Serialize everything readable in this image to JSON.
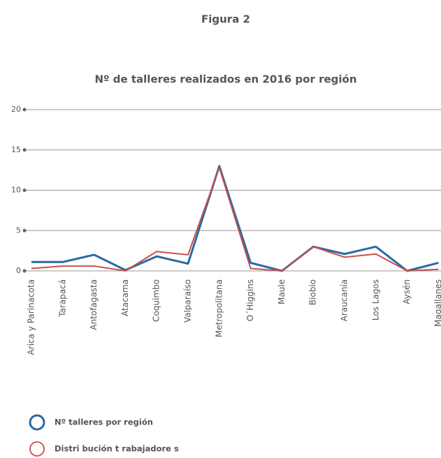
{
  "chart_data": {
    "type": "line",
    "figure_title": "Figura 2",
    "title": "Nº de talleres realizados en 2016 por región",
    "categories": [
      "Arica y Parinacota",
      "Tarapacá",
      "Antofagasta",
      "Atacama",
      "Coquimbo",
      "Valparaíso",
      "Metropolitana",
      "O´Higgins",
      "Maule",
      "Biobio",
      "Araucanía",
      "Los Lagos",
      "Aysén",
      "Magallanes"
    ],
    "series": [
      {
        "name": "Nº talleres por región",
        "color": "#2a6aa3",
        "values": [
          1.1,
          1.1,
          2,
          0.1,
          1.8,
          0.9,
          13,
          1,
          0,
          3,
          2.1,
          3,
          0,
          1
        ]
      },
      {
        "name": "Distri bución t rabajadore s",
        "color": "#c9504a",
        "values": [
          0.3,
          0.6,
          0.6,
          0,
          2.4,
          2,
          12.8,
          0.3,
          0,
          3,
          1.7,
          2.1,
          0,
          0.2
        ]
      }
    ],
    "ylim": [
      0,
      20
    ],
    "yticks": [
      0,
      5,
      10,
      15,
      20
    ],
    "grid": true
  }
}
